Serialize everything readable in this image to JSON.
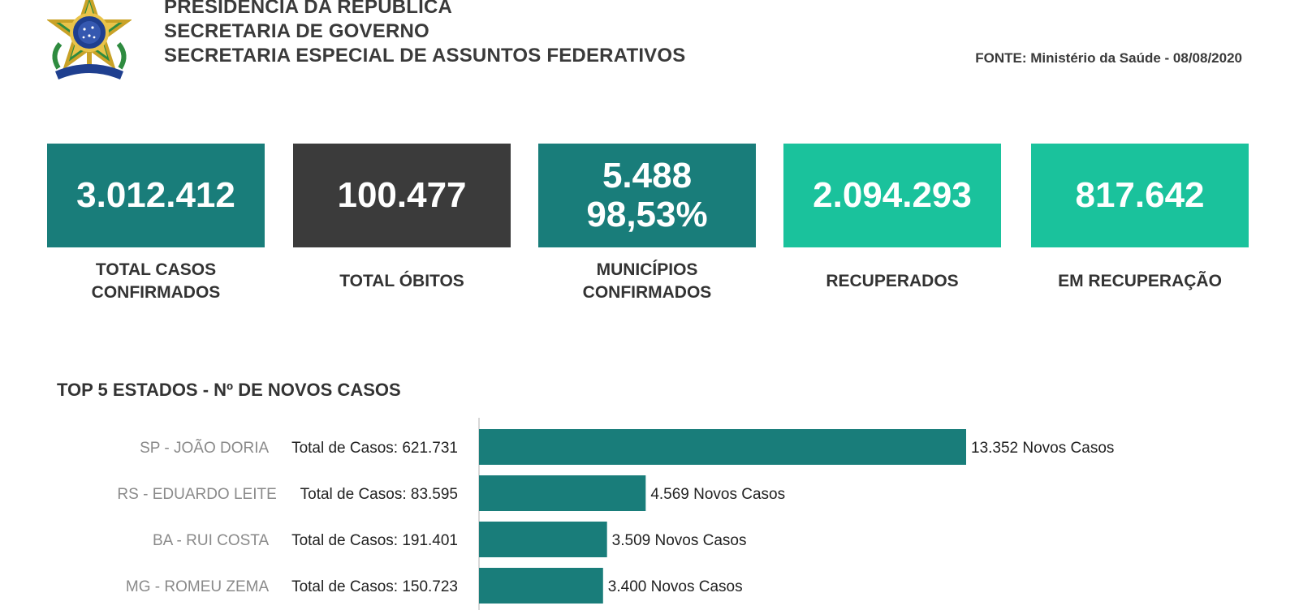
{
  "header": {
    "lines": [
      "PRESIDÊNCIA DA REPÚBLICA",
      "SECRETARIA DE GOVERNO",
      "SECRETARIA ESPECIAL DE ASSUNTOS FEDERATIVOS"
    ],
    "source": "FONTE: Ministério da Saúde - 08/08/2020"
  },
  "kpis": [
    {
      "value": "3.012.412",
      "label_line1": "TOTAL CASOS",
      "label_line2": "CONFIRMADOS",
      "color": "#197d7a"
    },
    {
      "value": "100.477",
      "label_line1": "TOTAL ÓBITOS",
      "label_line2": "",
      "color": "#3b3b3b"
    },
    {
      "value": "5.488",
      "value2": "98,53%",
      "label_line1": "MUNICÍPIOS",
      "label_line2": "CONFIRMADOS",
      "color": "#197d7a"
    },
    {
      "value": "2.094.293",
      "label_line1": "RECUPERADOS",
      "label_line2": "",
      "color": "#1ac29c"
    },
    {
      "value": "817.642",
      "label_line1": "EM RECUPERAÇÃO",
      "label_line2": "",
      "color": "#1ac29c"
    }
  ],
  "chart_data": {
    "type": "bar",
    "orientation": "horizontal",
    "title": "TOP 5 ESTADOS - Nº DE NOVOS CASOS",
    "categories": [
      "SP - JOÃO DORIA",
      "RS - EDUARDO LEITE",
      "BA - RUI COSTA",
      "MG - ROMEU ZEMA"
    ],
    "totals": [
      "Total de Casos: 621.731",
      "Total de Casos: 83.595",
      "Total de Casos: 191.401",
      "Total de Casos: 150.723"
    ],
    "values": [
      13352,
      4569,
      3509,
      3400
    ],
    "value_labels": [
      "13.352 Novos Casos",
      "4.569 Novos Casos",
      "3.509 Novos Casos",
      "3.400 Novos Casos"
    ],
    "bar_color": "#197d7a",
    "xlabel": "",
    "ylabel": ""
  }
}
